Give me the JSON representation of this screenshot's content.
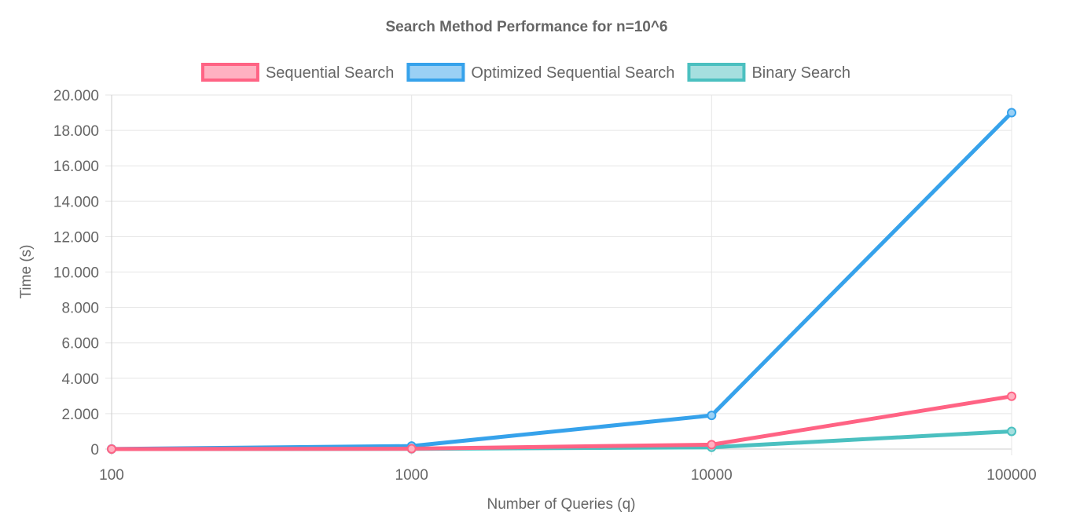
{
  "chart_data": {
    "type": "line",
    "title": "Search Method Performance for n=10^6",
    "xlabel": "Number of Queries (q)",
    "ylabel": "Time (s)",
    "categories": [
      "100",
      "1000",
      "10000",
      "100000"
    ],
    "ylim": [
      0,
      20000
    ],
    "yticks": [
      "0",
      "2.000",
      "4.000",
      "6.000",
      "8.000",
      "10.000",
      "12.000",
      "14.000",
      "16.000",
      "18.000",
      "20.000"
    ],
    "ytick_values": [
      0,
      2000,
      4000,
      6000,
      8000,
      10000,
      12000,
      14000,
      16000,
      18000,
      20000
    ],
    "grid": true,
    "legend_position": "top-center",
    "series": [
      {
        "name": "Sequential Search",
        "color": "#ff6384",
        "fill": "#ffb1c1",
        "values": [
          2,
          20,
          250,
          2980
        ]
      },
      {
        "name": "Optimized Sequential Search",
        "color": "#36a2eb",
        "fill": "#9ad0f5",
        "values": [
          5,
          170,
          1900,
          19000
        ]
      },
      {
        "name": "Binary Search",
        "color": "#4bc0c0",
        "fill": "#a5dfdf",
        "values": [
          1,
          10,
          100,
          1000
        ]
      }
    ]
  }
}
